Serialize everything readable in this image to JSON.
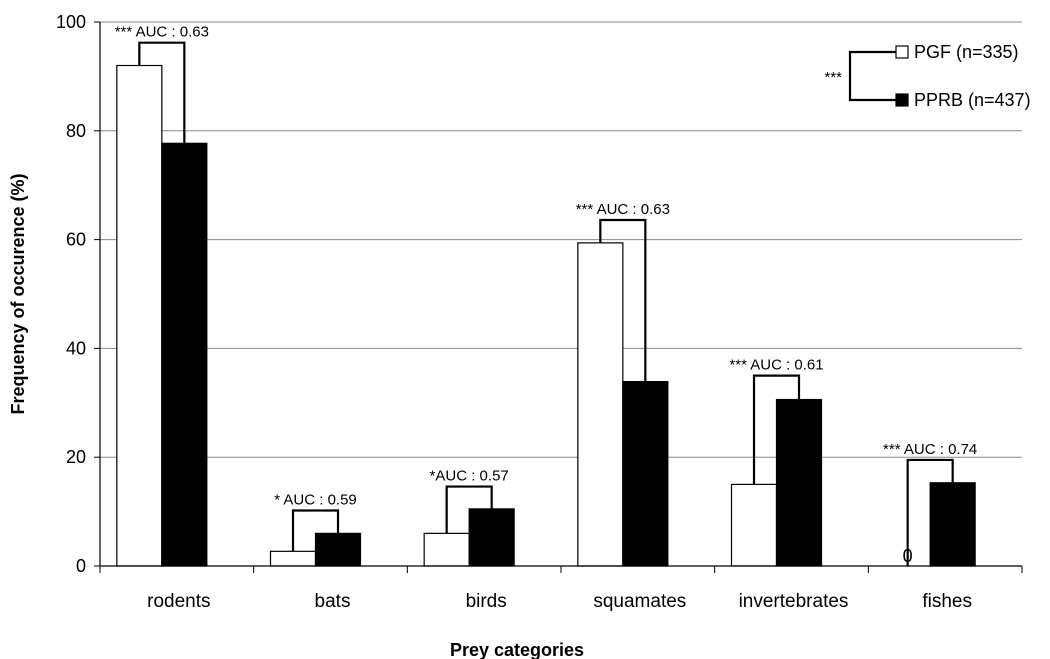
{
  "chart_data": {
    "type": "bar",
    "title": "",
    "xlabel": "Prey categories",
    "ylabel": "Frequency of occurence (%)",
    "ylim": [
      0,
      100
    ],
    "yticks": [
      0,
      20,
      40,
      60,
      80,
      100
    ],
    "grid": true,
    "categories": [
      "rodents",
      "bats",
      "birds",
      "squamates",
      "invertebrates",
      "fishes"
    ],
    "series": [
      {
        "name": "PGF (n=335)",
        "color": "#ffffff",
        "values": [
          92,
          2.7,
          6,
          59.4,
          15,
          0
        ]
      },
      {
        "name": "PPRB (n=437)",
        "color": "#000000",
        "values": [
          77.7,
          6,
          10.5,
          33.9,
          30.6,
          15.3
        ]
      }
    ],
    "value_labels": [
      "",
      "",
      "",
      "",
      "",
      "0"
    ],
    "comparisons": [
      {
        "label": "*** AUC : 0.63",
        "bracket_top": 96.2
      },
      {
        "label": "* AUC : 0.59",
        "bracket_top": 10.2
      },
      {
        "label": "*AUC : 0.57",
        "bracket_top": 14.6
      },
      {
        "label": "*** AUC : 0.63",
        "bracket_top": 63.6
      },
      {
        "label": "*** AUC : 0.61",
        "bracket_top": 35
      },
      {
        "label": "*** AUC : 0.74",
        "bracket_top": 19.5
      }
    ],
    "legend": {
      "placement": "top-right",
      "significance": "***"
    }
  }
}
